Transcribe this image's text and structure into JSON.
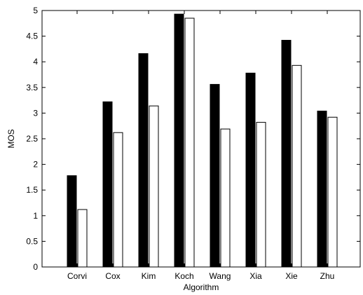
{
  "chart_data": {
    "type": "bar",
    "title": "",
    "xlabel": "Algorithm",
    "ylabel": "MOS",
    "ylim": [
      0,
      5
    ],
    "yticks": [
      0,
      0.5,
      1,
      1.5,
      2,
      2.5,
      3,
      3.5,
      4,
      4.5,
      5
    ],
    "ytick_labels": [
      "0",
      "0.5",
      "1",
      "1.5",
      "2",
      "2.5",
      "3",
      "3.5",
      "4",
      "4.5",
      "5"
    ],
    "grid": false,
    "legend": "none",
    "categories": [
      "Corvi",
      "Cox",
      "Kim",
      "Koch",
      "Wang",
      "Xia",
      "Xie",
      "Zhu"
    ],
    "series": [
      {
        "color": "#000000",
        "values": [
          1.78,
          3.22,
          4.16,
          4.93,
          3.56,
          3.78,
          4.42,
          3.04
        ]
      },
      {
        "color": "#ffffff",
        "values": [
          1.12,
          2.62,
          3.14,
          4.85,
          2.69,
          2.82,
          3.93,
          2.92
        ]
      }
    ]
  }
}
